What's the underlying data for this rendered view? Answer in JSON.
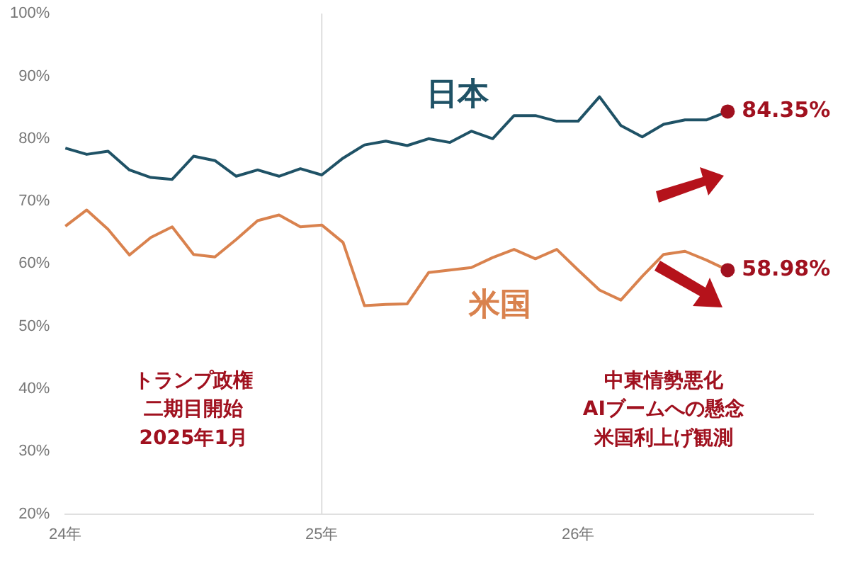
{
  "chart_data": {
    "type": "line",
    "categories": [
      "24年",
      null,
      null,
      null,
      null,
      null,
      null,
      null,
      null,
      null,
      null,
      null,
      "25年",
      null,
      null,
      null,
      null,
      null,
      null,
      null,
      null,
      null,
      null,
      null,
      "26年",
      null,
      null,
      null,
      null,
      null,
      null,
      null,
      null,
      null,
      null,
      null
    ],
    "series": [
      {
        "name": "日本",
        "color": "#1f5266",
        "values": [
          78.5,
          77.5,
          78.0,
          75.0,
          73.8,
          73.5,
          77.2,
          76.5,
          74.0,
          75.0,
          74.0,
          75.2,
          74.2,
          76.9,
          79.0,
          79.6,
          78.9,
          80.0,
          79.4,
          81.2,
          80.0,
          83.7,
          83.7,
          82.8,
          82.8,
          86.7,
          82.1,
          80.3,
          82.3,
          83.0,
          83.0,
          84.35,
          null,
          null,
          null,
          null
        ],
        "value_labels": [
          null,
          null,
          null,
          null,
          null,
          null,
          null,
          null,
          null,
          null,
          null,
          null,
          null,
          null,
          null,
          null,
          null,
          null,
          null,
          null,
          null,
          null,
          null,
          null,
          null,
          null,
          null,
          null,
          null,
          null,
          null,
          "84.35%",
          null,
          null,
          null,
          null
        ]
      },
      {
        "name": "米国",
        "color": "#d9824e",
        "values": [
          66.0,
          68.6,
          65.5,
          61.4,
          64.2,
          65.9,
          61.5,
          61.1,
          63.9,
          66.9,
          67.8,
          65.9,
          66.2,
          63.4,
          53.3,
          53.5,
          53.6,
          58.6,
          59.0,
          59.4,
          61.0,
          62.3,
          60.8,
          62.3,
          59.0,
          55.8,
          54.2,
          58.0,
          61.5,
          62.0,
          60.6,
          58.98,
          null,
          null,
          null,
          null
        ],
        "value_labels": [
          null,
          null,
          null,
          null,
          null,
          null,
          null,
          null,
          null,
          null,
          null,
          null,
          null,
          null,
          null,
          null,
          null,
          null,
          null,
          null,
          null,
          null,
          null,
          null,
          null,
          null,
          null,
          null,
          null,
          null,
          null,
          "58.98%",
          null,
          null,
          null,
          null
        ]
      }
    ],
    "ylim": [
      20,
      100
    ],
    "yticks": [
      {
        "value": 20,
        "label": "20%"
      },
      {
        "value": 30,
        "label": "30%"
      },
      {
        "value": 40,
        "label": "40%"
      },
      {
        "value": 50,
        "label": "50%"
      },
      {
        "value": 60,
        "label": "60%"
      },
      {
        "value": 70,
        "label": "70%"
      },
      {
        "value": 80,
        "label": "80%"
      },
      {
        "value": 90,
        "label": "90%"
      },
      {
        "value": 100,
        "label": "100%"
      }
    ],
    "grid": false,
    "legend": false,
    "marker": "none",
    "line_style": "solid",
    "ref_lines": [
      {
        "axis": "x",
        "value": "25年",
        "color": "#dddddd"
      }
    ],
    "annotations": [
      "トランプ政権",
      "二期目開始",
      "2025年1月",
      "中東情勢悪化",
      "AIブームへの懸念",
      "米国利上げ観測"
    ]
  }
}
